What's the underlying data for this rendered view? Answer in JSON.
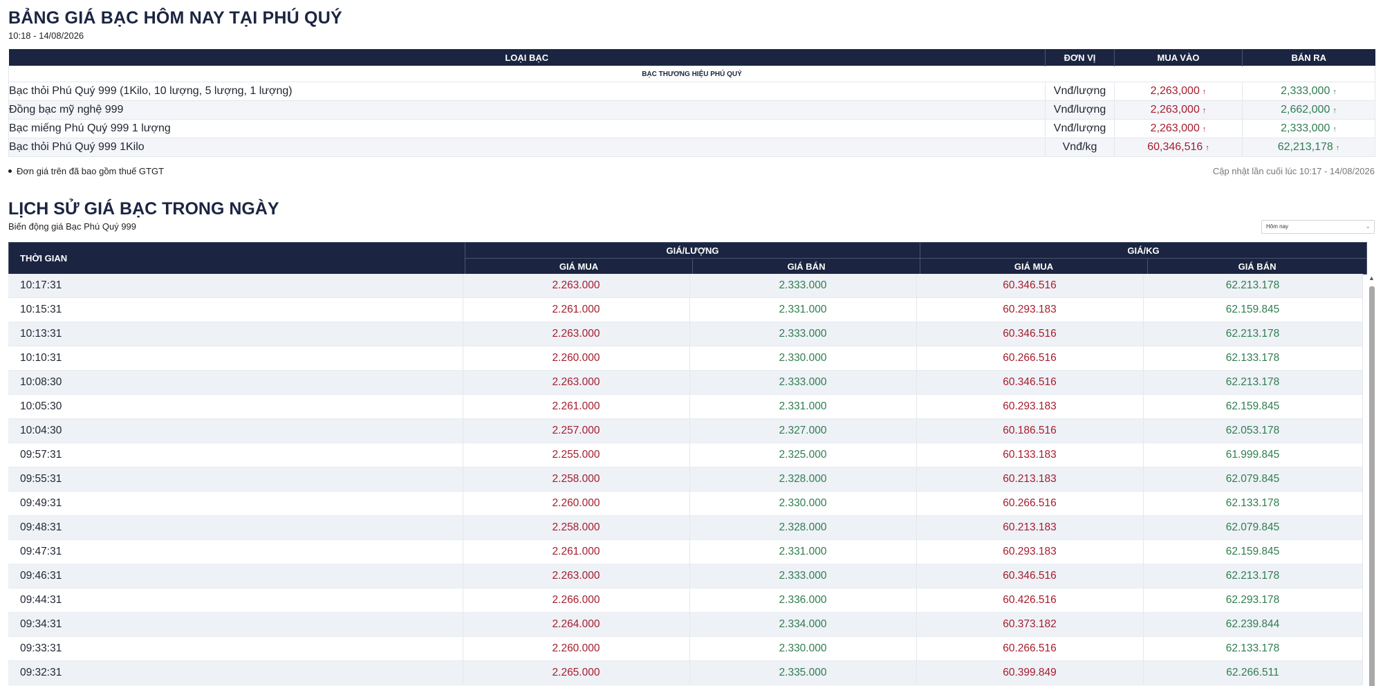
{
  "page": {
    "title": "BẢNG GIÁ BẠC HÔM NAY TẠI PHÚ QUÝ",
    "timestamp": "10:18 - 14/08/2026"
  },
  "price_table": {
    "headers": [
      "LOẠI BẠC",
      "ĐƠN VỊ",
      "MUA VÀO",
      "BÁN RA"
    ],
    "brand_label": "BẠC THƯƠNG HIỆU PHÚ QUÝ",
    "rows": [
      {
        "name": "Bạc thỏi Phú Quý 999 (1Kilo, 10 lượng, 5 lượng, 1 lượng)",
        "unit": "Vnđ/lượng",
        "buy": "2,263,000",
        "sell": "2,333,000"
      },
      {
        "name": "Đồng bạc mỹ nghệ 999",
        "unit": "Vnđ/lượng",
        "buy": "2,263,000",
        "sell": "2,662,000"
      },
      {
        "name": "Bạc miếng Phú Quý 999 1 lượng",
        "unit": "Vnđ/lượng",
        "buy": "2,263,000",
        "sell": "2,333,000"
      },
      {
        "name": "Bạc thỏi Phú Quý 999 1Kilo",
        "unit": "Vnđ/kg",
        "buy": "60,346,516",
        "sell": "62,213,178"
      }
    ],
    "trend_icon": "arrow-up-icon"
  },
  "note": "Đơn giá trên đã bao gồm thuế GTGT",
  "last_update": "Cập nhật lần cuối lúc 10:17 - 14/08/2026",
  "history": {
    "title": "LỊCH SỬ GIÁ BẠC TRONG NGÀY",
    "subtitle": "Biến động giá Bạc Phú Quý 999",
    "period_select": "Hôm nay",
    "header_time": "THỜI GIAN",
    "group_luong": "GIÁ/LƯỢNG",
    "group_kg": "GIÁ/KG",
    "col_buy": "GIÁ MUA",
    "col_sell": "GIÁ BÁN",
    "rows": [
      {
        "time": "10:17:31",
        "buy_luong": "2.263.000",
        "sell_luong": "2.333.000",
        "buy_kg": "60.346.516",
        "sell_kg": "62.213.178"
      },
      {
        "time": "10:15:31",
        "buy_luong": "2.261.000",
        "sell_luong": "2.331.000",
        "buy_kg": "60.293.183",
        "sell_kg": "62.159.845"
      },
      {
        "time": "10:13:31",
        "buy_luong": "2.263.000",
        "sell_luong": "2.333.000",
        "buy_kg": "60.346.516",
        "sell_kg": "62.213.178"
      },
      {
        "time": "10:10:31",
        "buy_luong": "2.260.000",
        "sell_luong": "2.330.000",
        "buy_kg": "60.266.516",
        "sell_kg": "62.133.178"
      },
      {
        "time": "10:08:30",
        "buy_luong": "2.263.000",
        "sell_luong": "2.333.000",
        "buy_kg": "60.346.516",
        "sell_kg": "62.213.178"
      },
      {
        "time": "10:05:30",
        "buy_luong": "2.261.000",
        "sell_luong": "2.331.000",
        "buy_kg": "60.293.183",
        "sell_kg": "62.159.845"
      },
      {
        "time": "10:04:30",
        "buy_luong": "2.257.000",
        "sell_luong": "2.327.000",
        "buy_kg": "60.186.516",
        "sell_kg": "62.053.178"
      },
      {
        "time": "09:57:31",
        "buy_luong": "2.255.000",
        "sell_luong": "2.325.000",
        "buy_kg": "60.133.183",
        "sell_kg": "61.999.845"
      },
      {
        "time": "09:55:31",
        "buy_luong": "2.258.000",
        "sell_luong": "2.328.000",
        "buy_kg": "60.213.183",
        "sell_kg": "62.079.845"
      },
      {
        "time": "09:49:31",
        "buy_luong": "2.260.000",
        "sell_luong": "2.330.000",
        "buy_kg": "60.266.516",
        "sell_kg": "62.133.178"
      },
      {
        "time": "09:48:31",
        "buy_luong": "2.258.000",
        "sell_luong": "2.328.000",
        "buy_kg": "60.213.183",
        "sell_kg": "62.079.845"
      },
      {
        "time": "09:47:31",
        "buy_luong": "2.261.000",
        "sell_luong": "2.331.000",
        "buy_kg": "60.293.183",
        "sell_kg": "62.159.845"
      },
      {
        "time": "09:46:31",
        "buy_luong": "2.263.000",
        "sell_luong": "2.333.000",
        "buy_kg": "60.346.516",
        "sell_kg": "62.213.178"
      },
      {
        "time": "09:44:31",
        "buy_luong": "2.266.000",
        "sell_luong": "2.336.000",
        "buy_kg": "60.426.516",
        "sell_kg": "62.293.178"
      },
      {
        "time": "09:34:31",
        "buy_luong": "2.264.000",
        "sell_luong": "2.334.000",
        "buy_kg": "60.373.182",
        "sell_kg": "62.239.844"
      },
      {
        "time": "09:33:31",
        "buy_luong": "2.260.000",
        "sell_luong": "2.330.000",
        "buy_kg": "60.266.516",
        "sell_kg": "62.133.178"
      },
      {
        "time": "09:32:31",
        "buy_luong": "2.265.000",
        "sell_luong": "2.335.000",
        "buy_kg": "60.399.849",
        "sell_kg": "62.266.511"
      }
    ]
  },
  "colors": {
    "header_bg": "#1b2541",
    "buy": "#a51c2c",
    "sell": "#2e7d4f"
  }
}
